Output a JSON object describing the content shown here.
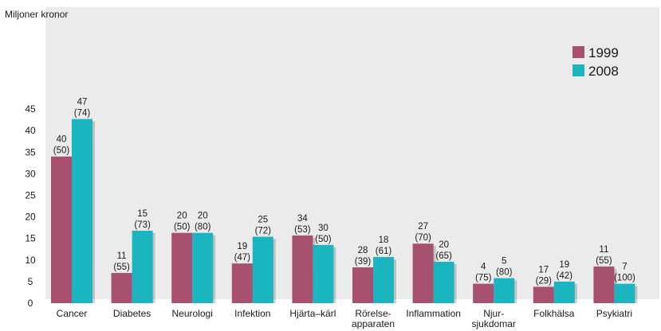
{
  "chart_data": {
    "type": "bar",
    "ylabel": "Miljoner kronor",
    "ylim": [
      0,
      45
    ],
    "yticks": [
      0,
      5,
      10,
      15,
      20,
      25,
      30,
      35,
      40,
      45
    ],
    "grid": false,
    "legend_position": "top-right",
    "categories": [
      [
        "Cancer"
      ],
      [
        "Diabetes"
      ],
      [
        "Neurologi"
      ],
      [
        "Infektion"
      ],
      [
        "Hjärta–kärl"
      ],
      [
        "Rörelse-",
        "apparaten"
      ],
      [
        "Inflammation"
      ],
      [
        "Njur-",
        "sjukdomar"
      ],
      [
        "Folkhälsa"
      ],
      [
        "Psykiatri"
      ]
    ],
    "series": [
      {
        "name": "1999",
        "color": "#a8506f",
        "values": [
          34,
          7,
          16.3,
          9.2,
          15.7,
          8.3,
          13.8,
          4.5,
          3.8,
          8.5
        ],
        "label_top": [
          "40",
          "11",
          "20",
          "19",
          "34",
          "28",
          "27",
          "4",
          "17",
          "11"
        ],
        "label_paren": [
          "(50)",
          "(55)",
          "(50)",
          "(47)",
          "(53)",
          "(39)",
          "(70)",
          "(75)",
          "(29)",
          "(55)"
        ]
      },
      {
        "name": "2008",
        "color": "#1ab5be",
        "values": [
          42.7,
          16.8,
          16.3,
          15.4,
          13.5,
          10.7,
          9.6,
          5.8,
          5,
          4.5
        ],
        "label_top": [
          "47",
          "15",
          "20",
          "25",
          "30",
          "18",
          "20",
          "5",
          "19",
          "7"
        ],
        "label_paren": [
          "(74)",
          "(73)",
          "(80)",
          "(72)",
          "(50)",
          "(61)",
          "(65)",
          "(80)",
          "(42)",
          "(100)"
        ]
      }
    ]
  }
}
